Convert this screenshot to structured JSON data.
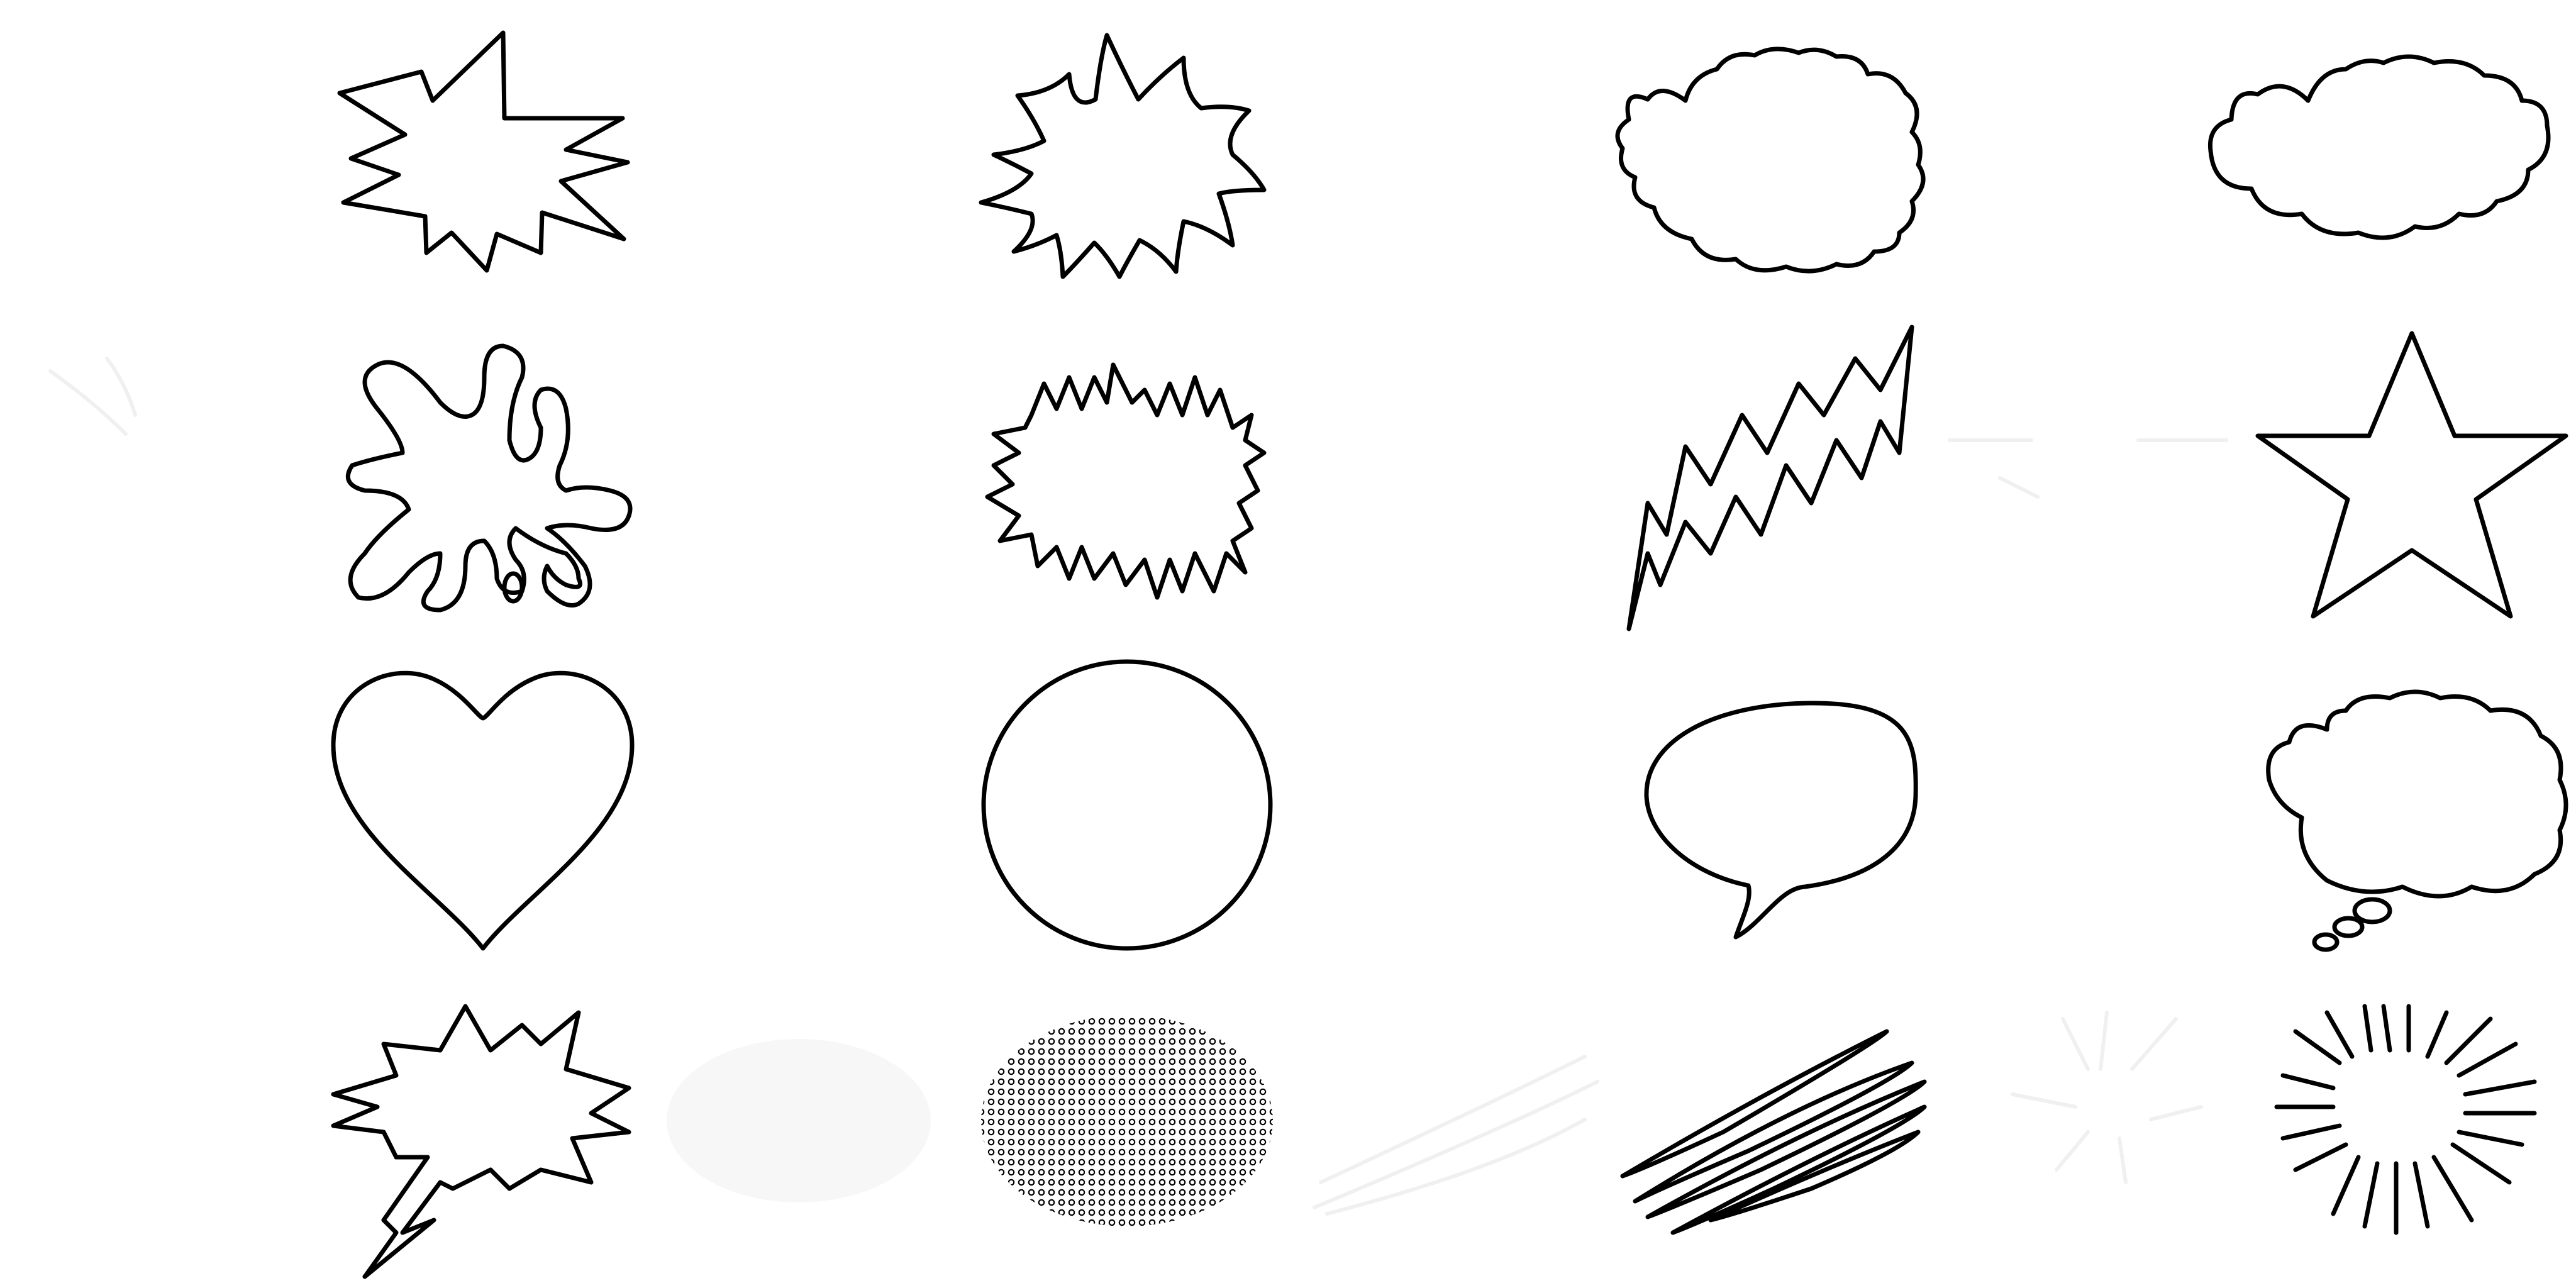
{
  "sheet": {
    "background": "#ffffff",
    "stroke_color": "#000000",
    "rows": 4,
    "columns": 4
  },
  "shapes": [
    {
      "row": 1,
      "col": 1,
      "icon": "spiky-burst-icon"
    },
    {
      "row": 1,
      "col": 2,
      "icon": "wavy-burst-icon"
    },
    {
      "row": 1,
      "col": 3,
      "icon": "bumpy-cloud-icon"
    },
    {
      "row": 1,
      "col": 4,
      "icon": "cloud-icon"
    },
    {
      "row": 2,
      "col": 1,
      "icon": "splat-icon"
    },
    {
      "row": 2,
      "col": 2,
      "icon": "crackle-burst-icon"
    },
    {
      "row": 2,
      "col": 3,
      "icon": "lightning-bolt-icon"
    },
    {
      "row": 2,
      "col": 4,
      "icon": "star-icon"
    },
    {
      "row": 3,
      "col": 1,
      "icon": "heart-icon"
    },
    {
      "row": 3,
      "col": 2,
      "icon": "circle-icon"
    },
    {
      "row": 3,
      "col": 3,
      "icon": "speech-bubble-icon"
    },
    {
      "row": 3,
      "col": 4,
      "icon": "thought-bubble-icon"
    },
    {
      "row": 4,
      "col": 1,
      "icon": "shout-bubble-icon"
    },
    {
      "row": 4,
      "col": 2,
      "icon": "halftone-dots-icon"
    },
    {
      "row": 4,
      "col": 3,
      "icon": "motion-lines-icon"
    },
    {
      "row": 4,
      "col": 4,
      "icon": "radial-burst-icon"
    }
  ]
}
